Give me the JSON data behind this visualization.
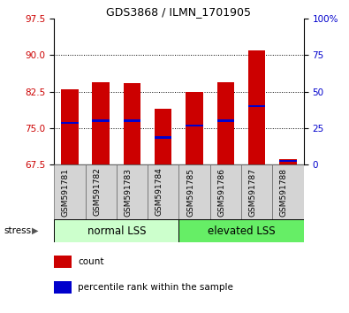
{
  "title": "GDS3868 / ILMN_1701905",
  "samples": [
    "GSM591781",
    "GSM591782",
    "GSM591783",
    "GSM591784",
    "GSM591785",
    "GSM591786",
    "GSM591787",
    "GSM591788"
  ],
  "bar_bottoms": [
    67.5,
    67.5,
    67.5,
    67.5,
    67.5,
    67.5,
    67.5,
    67.5
  ],
  "bar_tops": [
    83.0,
    84.5,
    84.3,
    79.0,
    82.5,
    84.4,
    91.0,
    68.5
  ],
  "percentile_vals": [
    76.0,
    76.5,
    76.5,
    73.0,
    75.5,
    76.5,
    79.5,
    68.2
  ],
  "ylim": [
    67.5,
    97.5
  ],
  "yticks_left": [
    67.5,
    75.0,
    82.5,
    90.0,
    97.5
  ],
  "yticks_right": [
    0,
    25,
    50,
    75,
    100
  ],
  "yticks_right_vals": [
    67.5,
    75.0,
    82.5,
    90.0,
    97.5
  ],
  "bar_color": "#cc0000",
  "percentile_color": "#0000cc",
  "group1_label": "normal LSS",
  "group2_label": "elevated LSS",
  "group1_color": "#ccffcc",
  "group2_color": "#66ee66",
  "stress_label": "stress",
  "legend1": "count",
  "legend2": "percentile rank within the sample",
  "bar_width": 0.55,
  "ylabel_left_color": "#cc0000",
  "ylabel_right_color": "#0000cc",
  "label_bg_color": "#d4d4d4",
  "title_fontsize": 9,
  "tick_fontsize": 7.5,
  "label_fontsize": 6.5,
  "group_fontsize": 8.5,
  "legend_fontsize": 7.5
}
